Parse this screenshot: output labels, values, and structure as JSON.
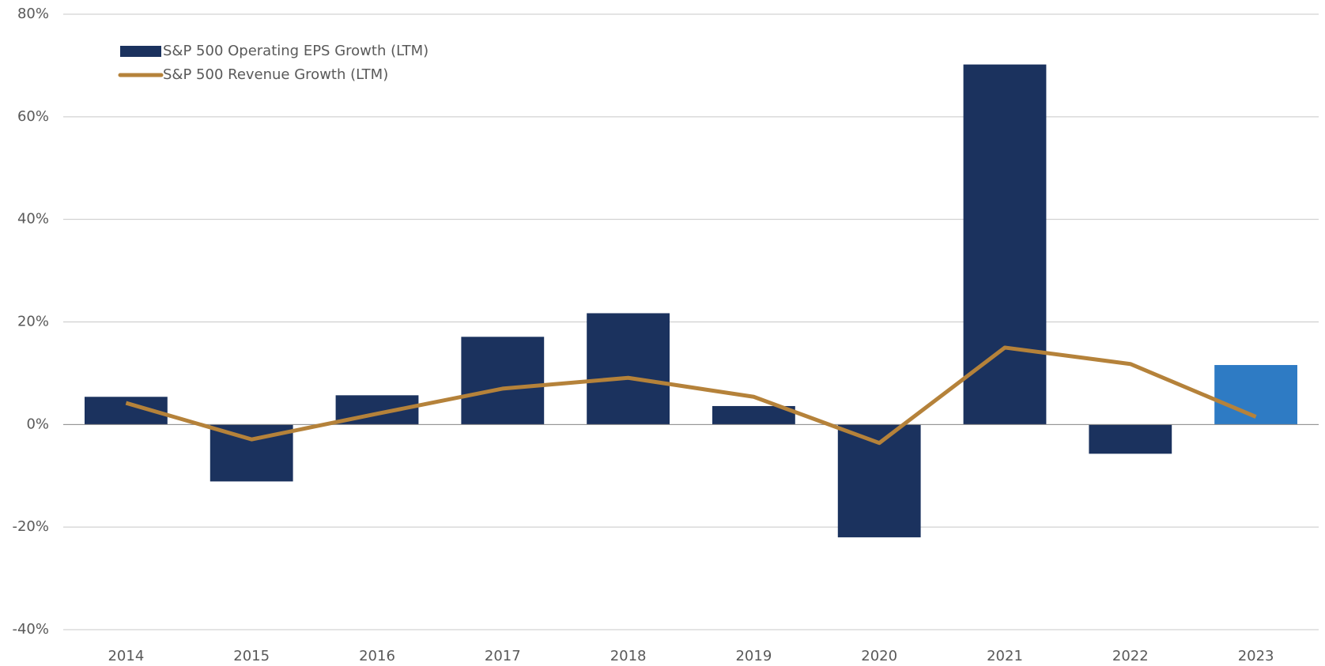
{
  "chart_data": {
    "type": "bar_line",
    "categories": [
      "2014",
      "2015",
      "2016",
      "2017",
      "2018",
      "2019",
      "2020",
      "2021",
      "2022",
      "2023"
    ],
    "series": [
      {
        "name": "S&P 500 Operating EPS Growth (LTM)",
        "type": "bar",
        "color": "#1b325e",
        "colors": [
          "#1b325e",
          "#1b325e",
          "#1b325e",
          "#1b325e",
          "#1b325e",
          "#1b325e",
          "#1b325e",
          "#1b325e",
          "#1b325e",
          "#2e7bc4"
        ],
        "values": [
          5.4,
          -11.1,
          5.7,
          17.1,
          21.7,
          3.6,
          -22.0,
          70.2,
          -5.7,
          11.6
        ]
      },
      {
        "name": "S&P 500 Revenue Growth (LTM)",
        "type": "line",
        "color": "#b5823a",
        "values": [
          4.2,
          -2.9,
          2.1,
          7.0,
          9.1,
          5.4,
          -3.6,
          15.0,
          11.8,
          1.5
        ]
      }
    ],
    "ylim": [
      -40,
      80
    ],
    "yticks": [
      {
        "value": -40,
        "label": "-40%"
      },
      {
        "value": -20,
        "label": "-20%"
      },
      {
        "value": 0,
        "label": "0%"
      },
      {
        "value": 20,
        "label": "20%"
      },
      {
        "value": 40,
        "label": "40%"
      },
      {
        "value": 60,
        "label": "60%"
      },
      {
        "value": 80,
        "label": "80%"
      }
    ],
    "grid": true,
    "legend": "top-left"
  }
}
